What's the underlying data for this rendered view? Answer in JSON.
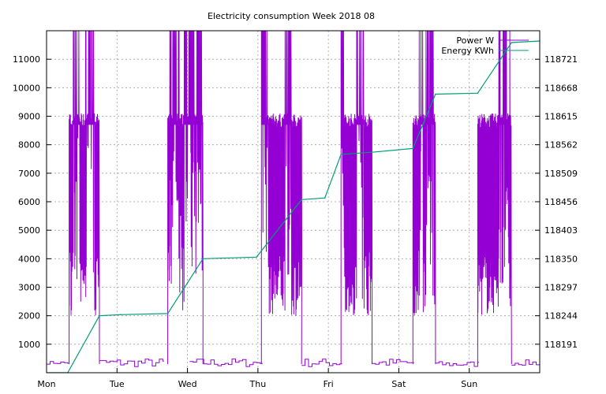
{
  "chart_data": {
    "type": "line",
    "title": "Electricity consumption Week 2018 08",
    "xlabel": "",
    "ylabel": "",
    "y2label": "",
    "x_tick_labels": [
      "Mon",
      "Tue",
      "Wed",
      "Thu",
      "Fri",
      "Sat",
      "Sun"
    ],
    "xlim_days": [
      0,
      7
    ],
    "ylim": [
      0,
      12000
    ],
    "y_ticks": [
      1000,
      2000,
      3000,
      4000,
      5000,
      6000,
      7000,
      8000,
      9000,
      10000,
      11000
    ],
    "y2lim": [
      118138,
      118774
    ],
    "y2_ticks": [
      118191,
      118244,
      118297,
      118350,
      118403,
      118456,
      118509,
      118562,
      118615,
      118668,
      118721
    ],
    "grid": true,
    "legend_position": "top-right",
    "series": [
      {
        "name": "Power W",
        "color": "#9400d3",
        "axis": "y",
        "baseline_segments": [
          {
            "x": [
              0.0,
              0.3
            ],
            "y": [
              300,
              400
            ]
          },
          {
            "x": [
              0.75,
              1.65
            ],
            "y": [
              200,
              500
            ]
          },
          {
            "x": [
              2.03,
              3.05
            ],
            "y": [
              200,
              500
            ]
          },
          {
            "x": [
              3.62,
              4.18
            ],
            "y": [
              200,
              500
            ]
          },
          {
            "x": [
              4.62,
              5.2
            ],
            "y": [
              200,
              500
            ]
          },
          {
            "x": [
              5.52,
              6.12
            ],
            "y": [
              200,
              400
            ]
          },
          {
            "x": [
              6.6,
              7.0
            ],
            "y": [
              250,
              450
            ]
          }
        ],
        "active_blocks": [
          {
            "start": 0.32,
            "end": 0.75,
            "high_start": 0.38,
            "high_end": 0.47,
            "high2_start": 0.55,
            "high2_end": 0.68,
            "mid": 9000,
            "low": 2000
          },
          {
            "start": 1.72,
            "end": 2.22,
            "high_start": 1.75,
            "high_end": 1.92,
            "high2_start": 1.95,
            "high2_end": 2.2,
            "mid": 9000,
            "low": 2000
          },
          {
            "start": 3.05,
            "end": 3.62,
            "high_start": 3.05,
            "high_end": 3.14,
            "high2_start": 3.38,
            "high2_end": 3.47,
            "mid": 9000,
            "low": 2000
          },
          {
            "start": 4.18,
            "end": 4.62,
            "high_start": 4.18,
            "high_end": 4.22,
            "high2_start": 4.4,
            "high2_end": 4.5,
            "mid": 9000,
            "low": 2000
          },
          {
            "start": 5.2,
            "end": 5.52,
            "high_start": 5.29,
            "high_end": 5.34,
            "high2_start": 5.38,
            "high2_end": 5.5,
            "mid": 9000,
            "low": 2000
          },
          {
            "start": 6.12,
            "end": 6.6,
            "high_start": 6.42,
            "high_end": 6.46,
            "high2_start": 6.48,
            "high2_end": 6.58,
            "mid": 9000,
            "low": 2000
          }
        ]
      },
      {
        "name": "Energy KWh",
        "color": "#009e73",
        "axis": "y2",
        "x": [
          0.0,
          0.3,
          0.75,
          1.05,
          1.72,
          2.22,
          2.98,
          3.62,
          3.95,
          4.18,
          4.62,
          5.2,
          5.52,
          6.12,
          6.6,
          7.0
        ],
        "y": [
          118138,
          118138,
          118244,
          118246,
          118248,
          118350,
          118353,
          118460,
          118463,
          118544,
          118548,
          118555,
          118656,
          118658,
          118752,
          118755
        ]
      }
    ]
  }
}
